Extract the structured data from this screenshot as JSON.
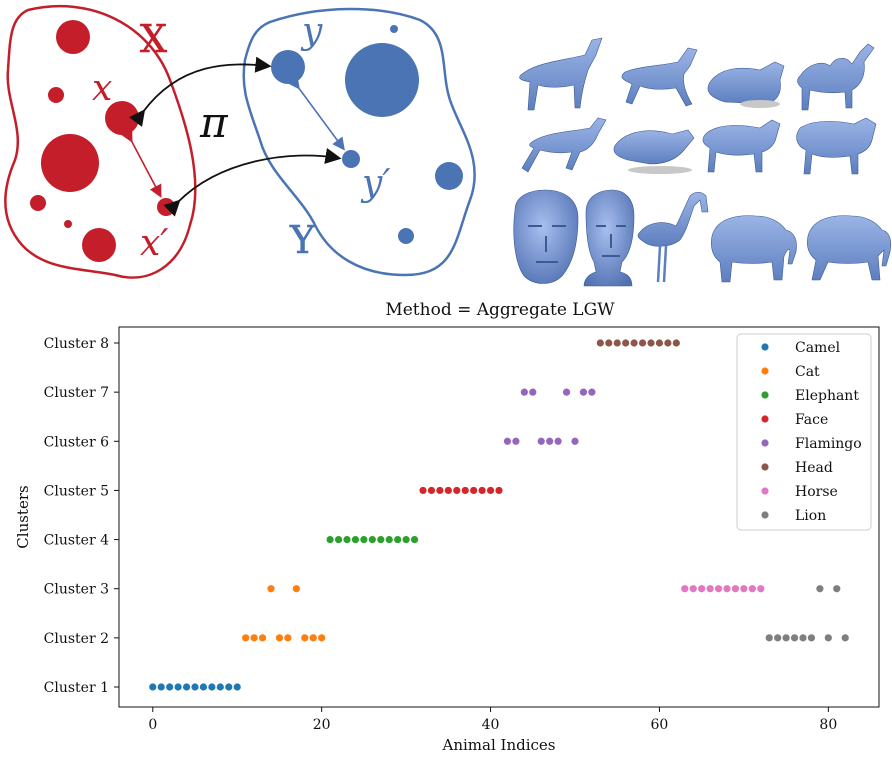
{
  "diagram": {
    "set_x_label": "X",
    "set_y_label": "Y",
    "x_label": "x",
    "x_prime_label": "x′",
    "y_label": "y",
    "y_prime_label": "y′",
    "map_label": "π",
    "colors": {
      "red": "#c41e2a",
      "blue": "#4a74b4"
    }
  },
  "shapes": [
    "horse-standing",
    "horse-walking",
    "lion-lying",
    "camel",
    "horse-running",
    "lion-pouncing",
    "cat-standing",
    "lion-standing",
    "face-mask",
    "head-bust",
    "flamingo",
    "elephant-standing",
    "elephant-walking"
  ],
  "chart_data": {
    "type": "scatter",
    "title": "Method = Aggregate LGW",
    "xlabel": "Animal Indices",
    "ylabel": "Clusters",
    "xlim": [
      -4,
      86
    ],
    "xticks": [
      0,
      20,
      40,
      60,
      80
    ],
    "categories": [
      "Cluster 1",
      "Cluster 2",
      "Cluster 3",
      "Cluster 4",
      "Cluster 5",
      "Cluster 6",
      "Cluster 7",
      "Cluster 8"
    ],
    "legend_position": "top-right",
    "grid": false,
    "series": [
      {
        "name": "Camel",
        "color": "#1f77b4",
        "points": [
          [
            0,
            "Cluster 1"
          ],
          [
            1,
            "Cluster 1"
          ],
          [
            2,
            "Cluster 1"
          ],
          [
            3,
            "Cluster 1"
          ],
          [
            4,
            "Cluster 1"
          ],
          [
            5,
            "Cluster 1"
          ],
          [
            6,
            "Cluster 1"
          ],
          [
            7,
            "Cluster 1"
          ],
          [
            8,
            "Cluster 1"
          ],
          [
            9,
            "Cluster 1"
          ],
          [
            10,
            "Cluster 1"
          ]
        ]
      },
      {
        "name": "Cat",
        "color": "#ff7f0e",
        "points": [
          [
            11,
            "Cluster 2"
          ],
          [
            12,
            "Cluster 2"
          ],
          [
            13,
            "Cluster 2"
          ],
          [
            14,
            "Cluster 3"
          ],
          [
            15,
            "Cluster 2"
          ],
          [
            16,
            "Cluster 2"
          ],
          [
            17,
            "Cluster 3"
          ],
          [
            18,
            "Cluster 2"
          ],
          [
            19,
            "Cluster 2"
          ],
          [
            20,
            "Cluster 2"
          ]
        ]
      },
      {
        "name": "Elephant",
        "color": "#2ca02c",
        "points": [
          [
            21,
            "Cluster 4"
          ],
          [
            22,
            "Cluster 4"
          ],
          [
            23,
            "Cluster 4"
          ],
          [
            24,
            "Cluster 4"
          ],
          [
            25,
            "Cluster 4"
          ],
          [
            26,
            "Cluster 4"
          ],
          [
            27,
            "Cluster 4"
          ],
          [
            28,
            "Cluster 4"
          ],
          [
            29,
            "Cluster 4"
          ],
          [
            30,
            "Cluster 4"
          ],
          [
            31,
            "Cluster 4"
          ]
        ]
      },
      {
        "name": "Face",
        "color": "#d62728",
        "points": [
          [
            32,
            "Cluster 5"
          ],
          [
            33,
            "Cluster 5"
          ],
          [
            34,
            "Cluster 5"
          ],
          [
            35,
            "Cluster 5"
          ],
          [
            36,
            "Cluster 5"
          ],
          [
            37,
            "Cluster 5"
          ],
          [
            38,
            "Cluster 5"
          ],
          [
            39,
            "Cluster 5"
          ],
          [
            40,
            "Cluster 5"
          ],
          [
            41,
            "Cluster 5"
          ]
        ]
      },
      {
        "name": "Flamingo",
        "color": "#9467bd",
        "points": [
          [
            42,
            "Cluster 6"
          ],
          [
            43,
            "Cluster 6"
          ],
          [
            44,
            "Cluster 7"
          ],
          [
            45,
            "Cluster 7"
          ],
          [
            46,
            "Cluster 6"
          ],
          [
            47,
            "Cluster 6"
          ],
          [
            48,
            "Cluster 6"
          ],
          [
            49,
            "Cluster 7"
          ],
          [
            50,
            "Cluster 6"
          ],
          [
            51,
            "Cluster 7"
          ],
          [
            52,
            "Cluster 7"
          ]
        ]
      },
      {
        "name": "Head",
        "color": "#8c564b",
        "points": [
          [
            53,
            "Cluster 8"
          ],
          [
            54,
            "Cluster 8"
          ],
          [
            55,
            "Cluster 8"
          ],
          [
            56,
            "Cluster 8"
          ],
          [
            57,
            "Cluster 8"
          ],
          [
            58,
            "Cluster 8"
          ],
          [
            59,
            "Cluster 8"
          ],
          [
            60,
            "Cluster 8"
          ],
          [
            61,
            "Cluster 8"
          ],
          [
            62,
            "Cluster 8"
          ]
        ]
      },
      {
        "name": "Horse",
        "color": "#e377c2",
        "points": [
          [
            63,
            "Cluster 3"
          ],
          [
            64,
            "Cluster 3"
          ],
          [
            65,
            "Cluster 3"
          ],
          [
            66,
            "Cluster 3"
          ],
          [
            67,
            "Cluster 3"
          ],
          [
            68,
            "Cluster 3"
          ],
          [
            69,
            "Cluster 3"
          ],
          [
            70,
            "Cluster 3"
          ],
          [
            71,
            "Cluster 3"
          ],
          [
            72,
            "Cluster 3"
          ]
        ]
      },
      {
        "name": "Lion",
        "color": "#7f7f7f",
        "points": [
          [
            73,
            "Cluster 2"
          ],
          [
            74,
            "Cluster 2"
          ],
          [
            75,
            "Cluster 2"
          ],
          [
            76,
            "Cluster 2"
          ],
          [
            77,
            "Cluster 2"
          ],
          [
            78,
            "Cluster 2"
          ],
          [
            79,
            "Cluster 3"
          ],
          [
            80,
            "Cluster 2"
          ],
          [
            81,
            "Cluster 3"
          ],
          [
            82,
            "Cluster 2"
          ]
        ]
      }
    ]
  }
}
